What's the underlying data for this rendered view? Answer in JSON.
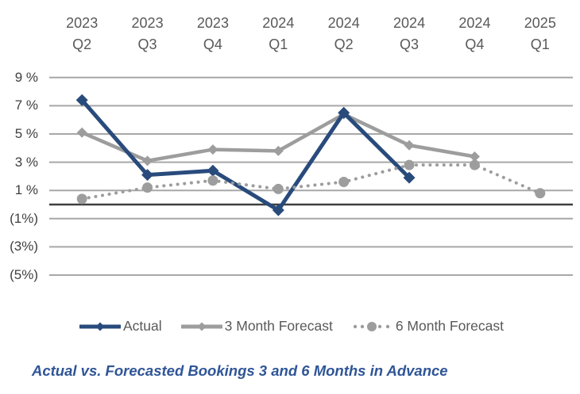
{
  "chart_data": {
    "type": "line",
    "title": "Actual vs. Forecasted Bookings 3 and 6 Months in Advance",
    "categories": [
      "2023 Q2",
      "2023 Q3",
      "2023 Q4",
      "2024 Q1",
      "2024 Q2",
      "2024 Q3",
      "2024 Q4",
      "2025 Q1"
    ],
    "series": [
      {
        "name": "Actual",
        "color": "#284B7C",
        "style": "solid",
        "marker": "diamond",
        "values": [
          7.4,
          2.1,
          2.4,
          -0.4,
          6.5,
          1.9,
          null,
          null
        ]
      },
      {
        "name": "3 Month Forecast",
        "color": "#9D9D9D",
        "style": "solid",
        "marker": "diamond",
        "values": [
          5.1,
          3.1,
          3.9,
          3.8,
          6.4,
          4.2,
          3.4,
          null
        ]
      },
      {
        "name": "6 Month Forecast",
        "color": "#9D9D9D",
        "style": "dotted",
        "marker": "circle",
        "values": [
          0.4,
          1.2,
          1.7,
          1.1,
          1.6,
          2.8,
          2.8,
          0.8
        ]
      }
    ],
    "y_axis": {
      "ticks": [
        {
          "label": "9 %",
          "value": 9
        },
        {
          "label": "7 %",
          "value": 7
        },
        {
          "label": "5 %",
          "value": 5
        },
        {
          "label": "3 %",
          "value": 3
        },
        {
          "label": "1 %",
          "value": 1
        },
        {
          "label": "(1%)",
          "value": -1
        },
        {
          "label": "(3%)",
          "value": -3
        },
        {
          "label": "(5%)",
          "value": -5
        }
      ],
      "zero_line": true
    },
    "ylim": [
      -5,
      9
    ],
    "grid": true,
    "x_axis_position": "top",
    "legend_position": "bottom",
    "colors": {
      "gridline": "#A7A7A7",
      "zero_line": "#3F3F3F",
      "x_label": "#595959",
      "y_label": "#3F3F3F",
      "legend_text": "#595959",
      "title": "#2F5597",
      "background": "#FFFFFF"
    }
  }
}
